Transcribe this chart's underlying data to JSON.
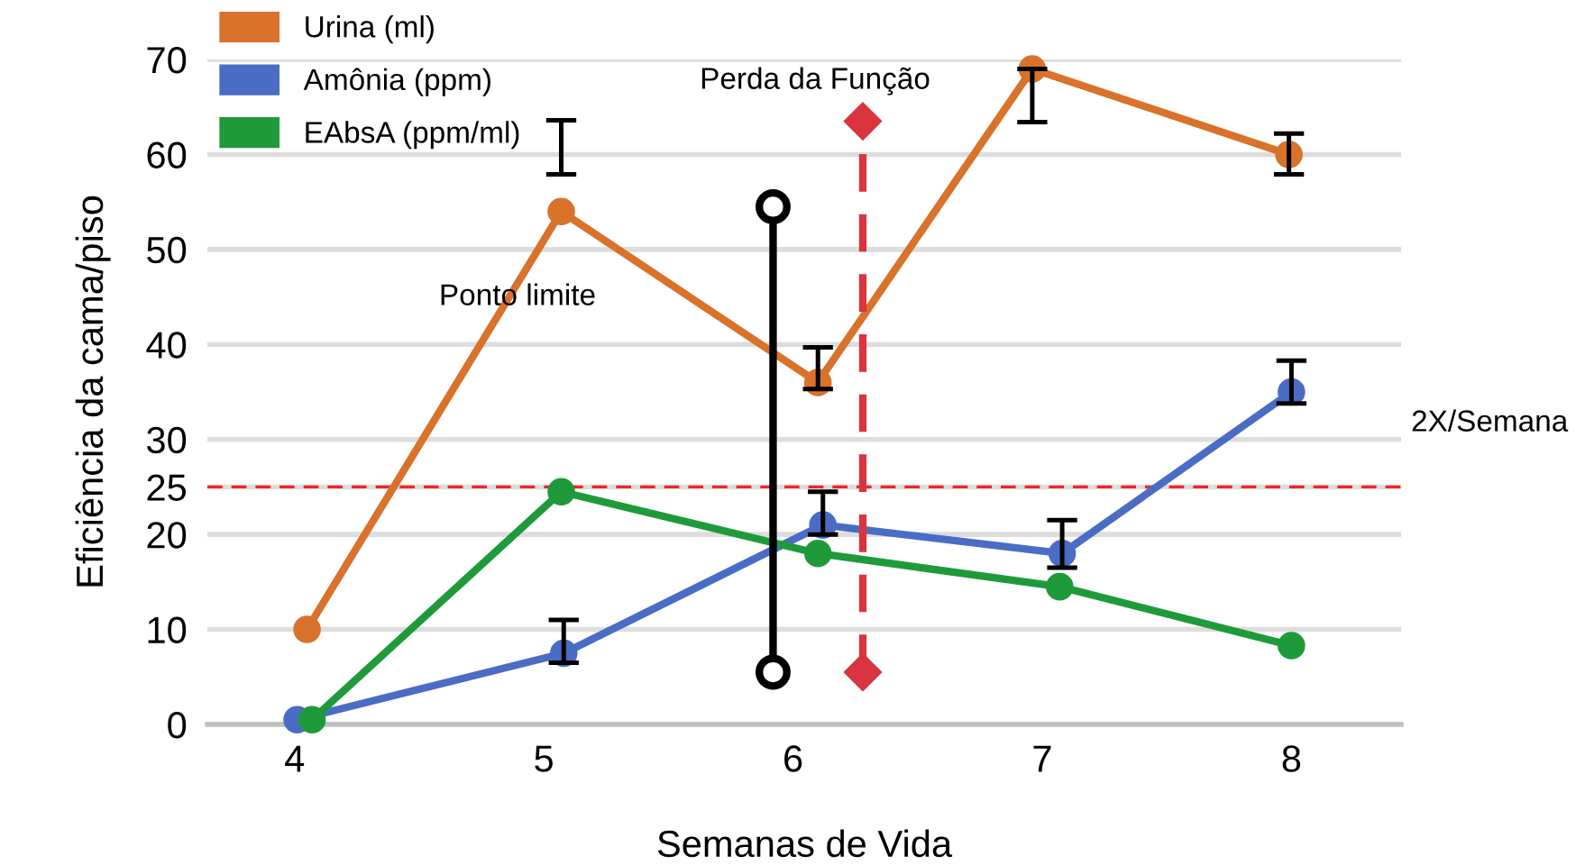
{
  "chart_data": {
    "type": "line",
    "xlabel": "Semanas de Vida",
    "ylabel": "Eficiência da cama/piso",
    "xlim": [
      3.65,
      8.44
    ],
    "xticks": [
      4,
      5,
      6,
      7,
      8
    ],
    "ylim": [
      0,
      70
    ],
    "yticks": [
      0,
      10,
      20,
      25,
      30,
      40,
      50,
      60,
      70
    ],
    "grid": "y",
    "legend": "top left",
    "marker": "circle",
    "line_style": "solid",
    "series": [
      {
        "name": "Urina (ml)",
        "color": "#d9722a",
        "x": [
          4.05,
          5.07,
          6.1,
          6.96,
          7.99
        ],
        "values": [
          10,
          54,
          36,
          69,
          60
        ],
        "errors": [
          null,
          [
            57.9,
            63.6
          ],
          [
            35.3,
            39.7
          ],
          [
            63.4,
            69
          ],
          [
            57.9,
            62.2
          ]
        ]
      },
      {
        "name": "Amônia (ppm)",
        "color": "#4a6cc4",
        "x": [
          4.01,
          5.08,
          6.12,
          7.08,
          8.0
        ],
        "values": [
          0.5,
          7.5,
          21,
          18,
          35
        ],
        "errors": [
          null,
          [
            6.5,
            11
          ],
          [
            20,
            24.5
          ],
          [
            16.5,
            21.5
          ],
          [
            33.8,
            38.3
          ]
        ]
      },
      {
        "name": "EAbsA (ppm/ml)",
        "color": "#1f9a3a",
        "x": [
          4.07,
          5.07,
          6.1,
          7.07,
          8.0
        ],
        "values": [
          0.5,
          24.5,
          18,
          14.5,
          8.3
        ]
      },
      {
        "color": "#000000",
        "x": [
          5.92,
          5.92
        ],
        "values": [
          5.5,
          54.5
        ],
        "marker": "open circle"
      },
      {
        "color": "#d9343f",
        "x": [
          6.28,
          6.28
        ],
        "values": [
          5.5,
          63.5
        ],
        "marker": "diamond",
        "line_style": "dashed"
      }
    ],
    "ref_lines": [
      {
        "axis": "y",
        "value": 25,
        "color": "#ff2020",
        "line_style": "dashed"
      }
    ],
    "annotations": [
      "Ponto limite",
      "Perda da Função",
      "2X/Semana"
    ]
  }
}
